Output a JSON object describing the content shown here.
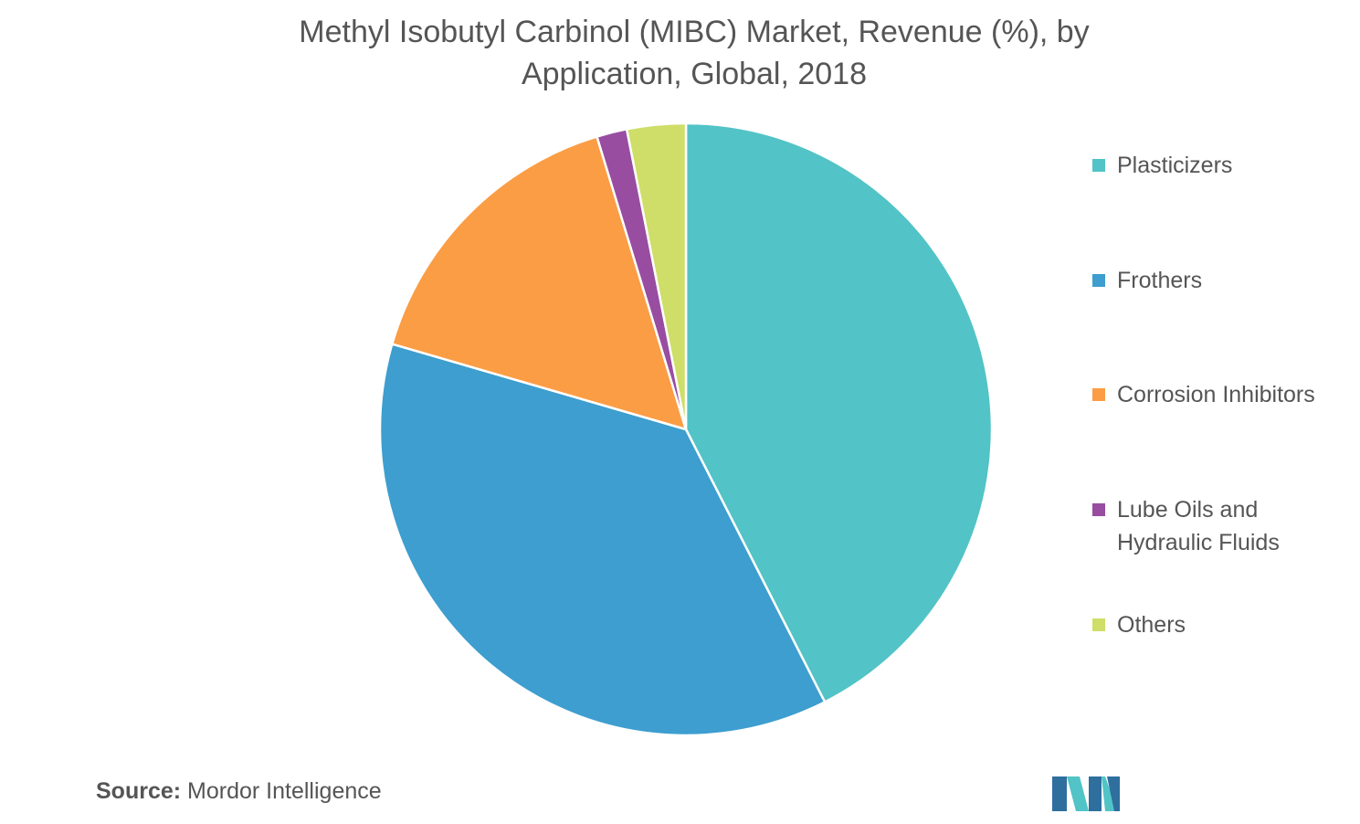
{
  "chart_data": {
    "type": "pie",
    "title": "Methyl Isobutyl Carbinol (MIBC) Market, Revenue (%), by Application, Global, 2018",
    "title_lines": [
      "Methyl Isobutyl Carbinol (MIBC) Market, Revenue (%), by",
      "Application, Global, 2018"
    ],
    "legend_position": "right",
    "slices": [
      {
        "label": "Plasticizers",
        "label_lines": [
          "Plasticizers"
        ],
        "value": 42.5,
        "color": "#52c3c6"
      },
      {
        "label": "Frothers",
        "label_lines": [
          "Frothers"
        ],
        "value": 37.0,
        "color": "#3d9ecf"
      },
      {
        "label": "Corrosion Inhibitors",
        "label_lines": [
          "Corrosion Inhibitors"
        ],
        "value": 15.8,
        "color": "#fb9d45"
      },
      {
        "label": "Lube Oils and Hydraulic Fluids",
        "label_lines": [
          "Lube Oils and",
          "Hydraulic Fluids"
        ],
        "value": 1.6,
        "color": "#984da1"
      },
      {
        "label": "Others",
        "label_lines": [
          "Others"
        ],
        "value": 3.1,
        "color": "#cede68"
      }
    ]
  },
  "source": {
    "prefix": "Source:",
    "name": "Mordor Intelligence"
  },
  "logo": {
    "colors": [
      "#2e6f9e",
      "#52c3c6"
    ]
  }
}
